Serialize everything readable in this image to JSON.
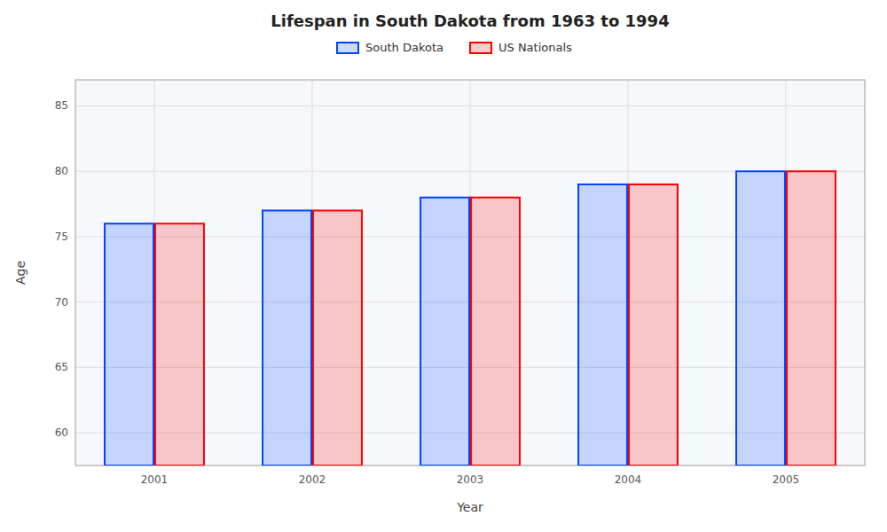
{
  "chart_data": {
    "type": "bar",
    "title": "Lifespan in South Dakota from 1963 to 1994",
    "x_label": "Year",
    "y_label": "Age",
    "categories": [
      "2001",
      "2002",
      "2003",
      "2004",
      "2005"
    ],
    "series": [
      {
        "name": "South Dakota",
        "color": "#0044ff",
        "values": [
          76,
          77,
          78,
          79,
          80
        ]
      },
      {
        "name": "US Nationals",
        "color": "#ff0000",
        "values": [
          76,
          77,
          78,
          79,
          80
        ]
      }
    ],
    "ylim": [
      57.5,
      87
    ],
    "yticks": [
      60,
      65,
      70,
      75,
      80,
      85
    ],
    "grid": true,
    "legend": "top"
  }
}
